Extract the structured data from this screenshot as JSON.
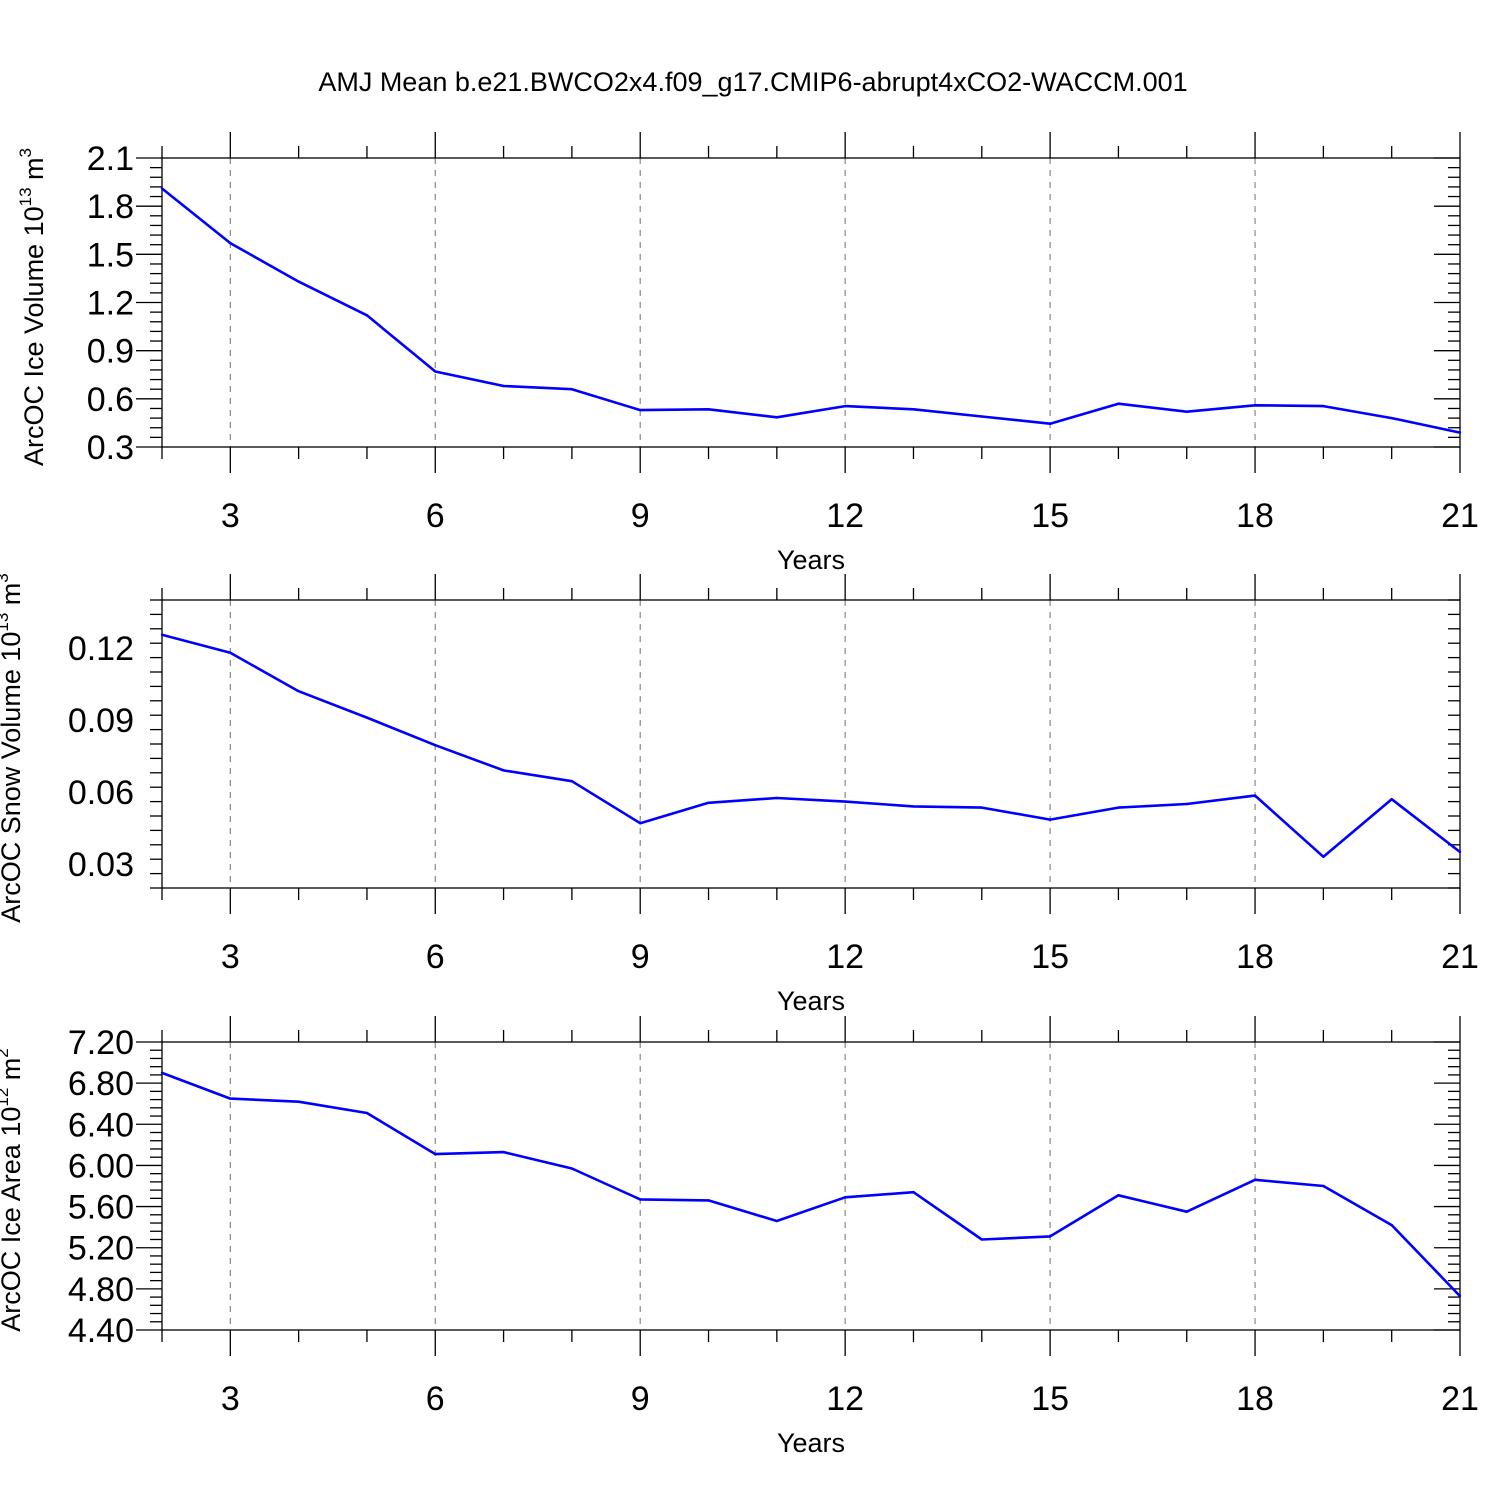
{
  "title": "AMJ Mean b.e21.BWCO2x4.f09_g17.CMIP6-abrupt4xCO2-WACCM.001",
  "line_color": "#0000ff",
  "chart_data": [
    {
      "type": "line",
      "xlabel": "Years",
      "ylabel": {
        "main": "ArcOC Ice Volume 10",
        "exp": "13",
        "unit": " m",
        "unit_exp": "3"
      },
      "xlim": [
        2,
        21
      ],
      "ylim": [
        0.3,
        2.1
      ],
      "x_ticks": [
        "3",
        "6",
        "9",
        "12",
        "15",
        "18",
        "21"
      ],
      "y_ticks": [
        "0.3",
        "0.6",
        "0.9",
        "1.2",
        "1.5",
        "1.8",
        "2.1"
      ],
      "grid": "x-dashed",
      "x": [
        2,
        3,
        4,
        5,
        6,
        7,
        8,
        9,
        10,
        11,
        12,
        13,
        14,
        15,
        16,
        17,
        18,
        19,
        20,
        21
      ],
      "values": [
        1.91,
        1.57,
        1.33,
        1.12,
        0.77,
        0.68,
        0.66,
        0.53,
        0.535,
        0.485,
        0.555,
        0.535,
        0.49,
        0.445,
        0.57,
        0.52,
        0.56,
        0.555,
        0.48,
        0.39
      ]
    },
    {
      "type": "line",
      "xlabel": "Years",
      "ylabel": {
        "main": "ArcOC Snow Volume 10",
        "exp": "13",
        "unit": " m",
        "unit_exp": "3"
      },
      "xlim": [
        2,
        21
      ],
      "ylim": [
        0.02,
        0.14
      ],
      "x_ticks": [
        "3",
        "6",
        "9",
        "12",
        "15",
        "18",
        "21"
      ],
      "y_ticks": [
        "0.03",
        "0.06",
        "0.09",
        "0.12"
      ],
      "grid": "x-dashed",
      "x": [
        2,
        3,
        4,
        5,
        6,
        7,
        8,
        9,
        10,
        11,
        12,
        13,
        14,
        15,
        16,
        17,
        18,
        19,
        20,
        21
      ],
      "values": [
        0.1255,
        0.118,
        0.102,
        0.091,
        0.0795,
        0.069,
        0.0645,
        0.047,
        0.0555,
        0.0575,
        0.056,
        0.054,
        0.0535,
        0.0485,
        0.0535,
        0.055,
        0.0585,
        0.033,
        0.057,
        0.035
      ]
    },
    {
      "type": "line",
      "xlabel": "Years",
      "ylabel": {
        "main": "ArcOC Ice Area 10",
        "exp": "12",
        "unit": " m",
        "unit_exp": "2"
      },
      "xlim": [
        2,
        21
      ],
      "ylim": [
        4.4,
        7.2
      ],
      "x_ticks": [
        "3",
        "6",
        "9",
        "12",
        "15",
        "18",
        "21"
      ],
      "y_ticks": [
        "4.40",
        "4.80",
        "5.20",
        "5.60",
        "6.00",
        "6.40",
        "6.80",
        "7.20"
      ],
      "grid": "x-dashed",
      "x": [
        2,
        3,
        4,
        5,
        6,
        7,
        8,
        9,
        10,
        11,
        12,
        13,
        14,
        15,
        16,
        17,
        18,
        19,
        20,
        21
      ],
      "values": [
        6.9,
        6.65,
        6.62,
        6.51,
        6.11,
        6.13,
        5.97,
        5.67,
        5.66,
        5.46,
        5.69,
        5.74,
        5.28,
        5.31,
        5.71,
        5.55,
        5.86,
        5.8,
        5.42,
        4.73
      ]
    }
  ]
}
